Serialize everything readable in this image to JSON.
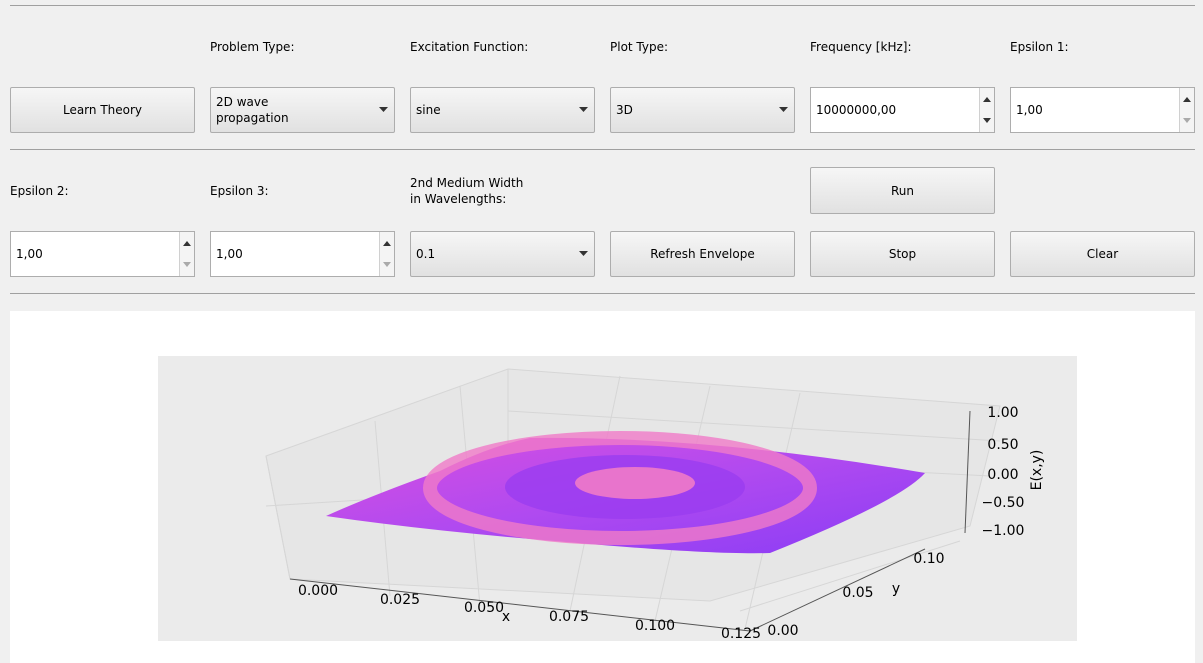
{
  "toolbar": {
    "learn_theory": "Learn Theory",
    "problem_type": {
      "label": "Problem Type:",
      "value_lines": [
        "2D wave",
        "propagation"
      ]
    },
    "excitation": {
      "label": "Excitation Function:",
      "value": "sine"
    },
    "plot_type": {
      "label": "Plot Type:",
      "value": "3D"
    },
    "frequency": {
      "label": "Frequency [kHz]:",
      "value": "10000000,00"
    },
    "epsilon1": {
      "label": "Epsilon 1:",
      "value": "1,00"
    },
    "epsilon2": {
      "label": "Epsilon 2:",
      "value": "1,00"
    },
    "epsilon3": {
      "label": "Epsilon 3:",
      "value": "1,00"
    },
    "medium_width": {
      "label_lines": [
        "2nd Medium Width",
        "in Wavelengths:"
      ],
      "value": "0.1"
    },
    "refresh": "Refresh Envelope",
    "run": "Run",
    "stop": "Stop",
    "clear": "Clear"
  },
  "plot": {
    "x_label": "x",
    "y_label": "y",
    "z_label": "E(x,y)",
    "x_ticks": [
      "0.000",
      "0.025",
      "0.050",
      "0.075",
      "0.100",
      "0.125"
    ],
    "y_ticks": [
      "0.00",
      "0.05",
      "0.10"
    ],
    "z_ticks": [
      "1.00",
      "0.50",
      "0.00",
      "−0.50",
      "−1.00"
    ]
  }
}
